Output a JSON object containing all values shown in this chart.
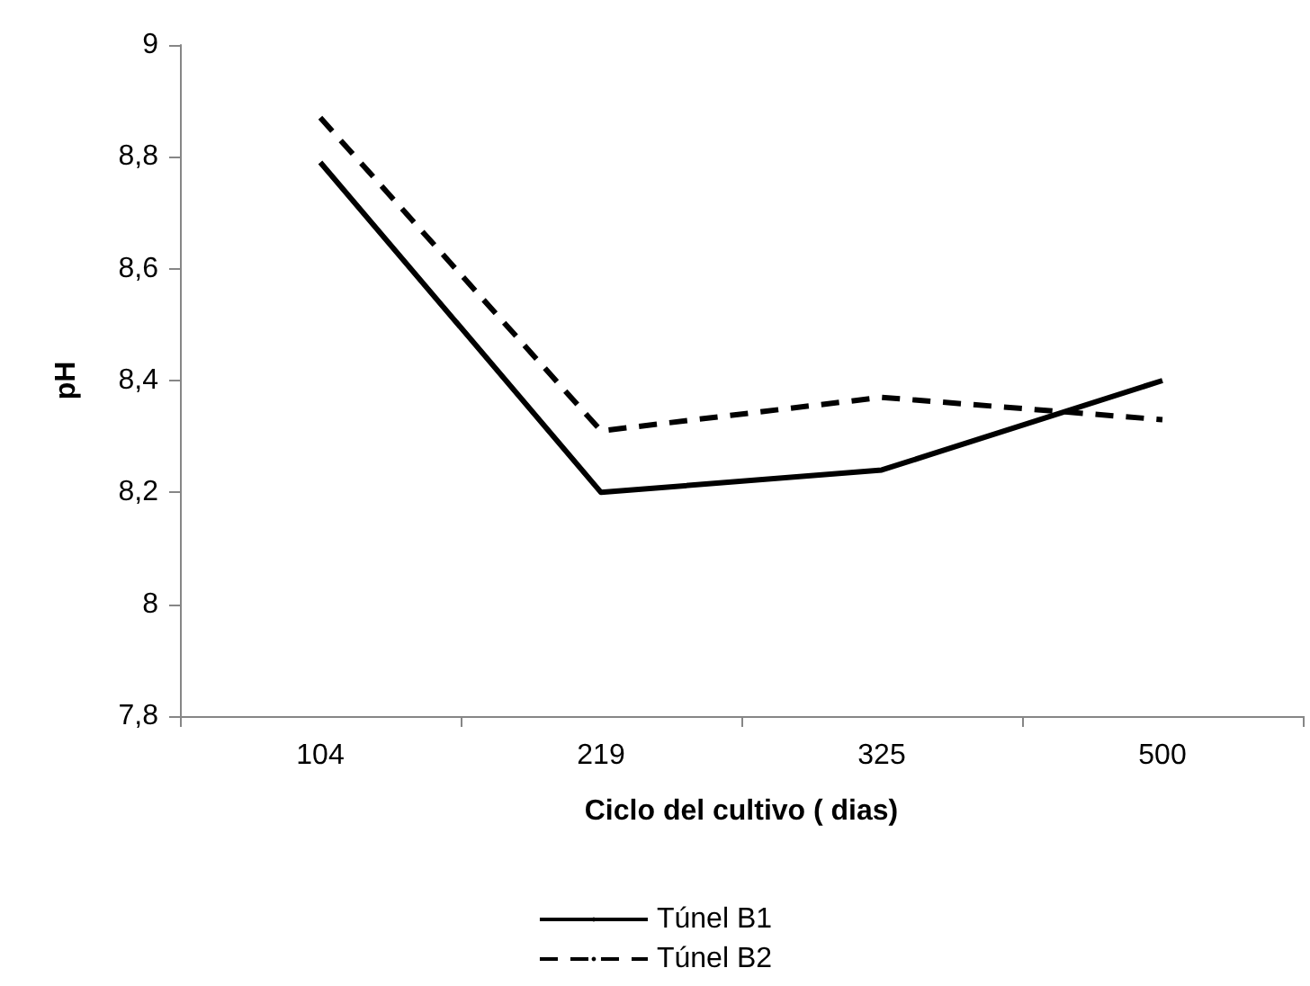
{
  "chart_data": {
    "type": "line",
    "xlabel": "Ciclo del cultivo ( dias)",
    "ylabel": "pH",
    "categories": [
      "104",
      "219",
      "325",
      "500"
    ],
    "series": [
      {
        "name": "Túnel B1",
        "color": "#000000",
        "line_style": "solid",
        "values": [
          8.79,
          8.2,
          8.24,
          8.4
        ]
      },
      {
        "name": "Túnel B2",
        "color": "#000000",
        "line_style": "dashed",
        "values": [
          8.87,
          8.31,
          8.37,
          8.33
        ]
      }
    ],
    "ylim": [
      7.8,
      9
    ],
    "yticks": [
      {
        "value": 7.8,
        "label": "7,8"
      },
      8,
      {
        "value": 8.2,
        "label": "8,2"
      },
      {
        "value": 8.4,
        "label": "8,4"
      },
      {
        "value": 8.6,
        "label": "8,6"
      },
      {
        "value": 8.8,
        "label": "8,8"
      },
      9
    ],
    "grid": false,
    "legend": "bottom",
    "marker": "none"
  }
}
